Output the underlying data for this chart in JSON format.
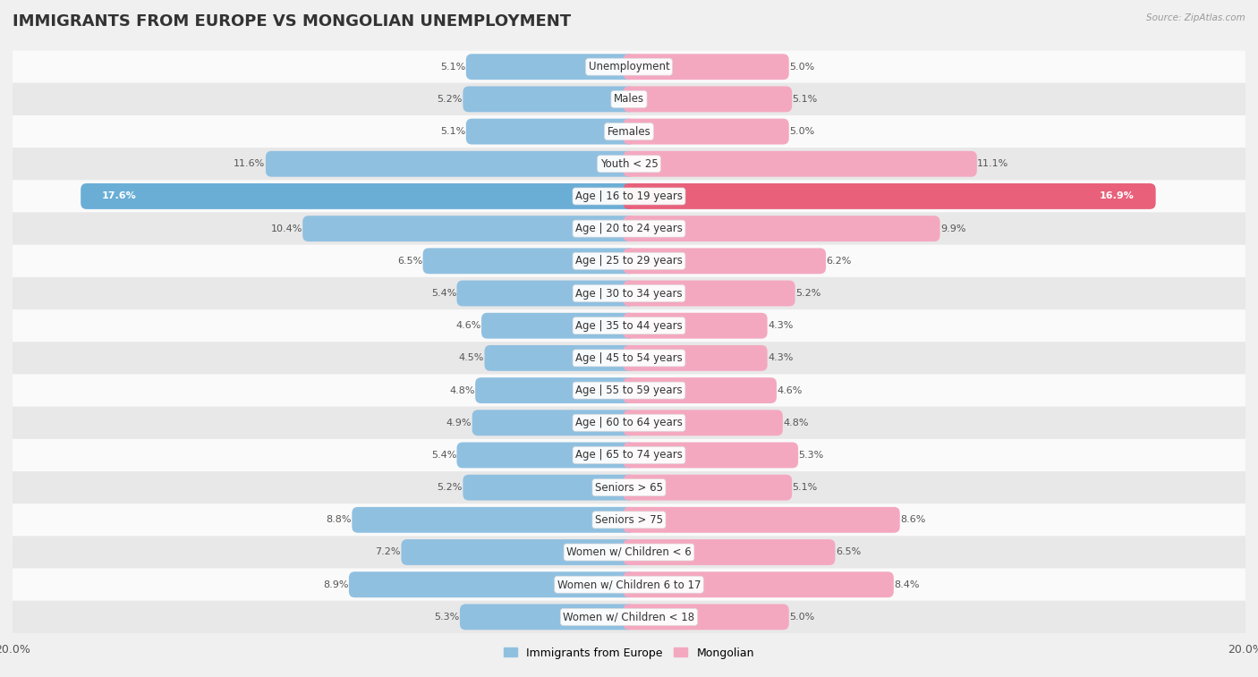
{
  "title": "IMMIGRANTS FROM EUROPE VS MONGOLIAN UNEMPLOYMENT",
  "source": "Source: ZipAtlas.com",
  "categories": [
    "Unemployment",
    "Males",
    "Females",
    "Youth < 25",
    "Age | 16 to 19 years",
    "Age | 20 to 24 years",
    "Age | 25 to 29 years",
    "Age | 30 to 34 years",
    "Age | 35 to 44 years",
    "Age | 45 to 54 years",
    "Age | 55 to 59 years",
    "Age | 60 to 64 years",
    "Age | 65 to 74 years",
    "Seniors > 65",
    "Seniors > 75",
    "Women w/ Children < 6",
    "Women w/ Children 6 to 17",
    "Women w/ Children < 18"
  ],
  "left_values": [
    5.1,
    5.2,
    5.1,
    11.6,
    17.6,
    10.4,
    6.5,
    5.4,
    4.6,
    4.5,
    4.8,
    4.9,
    5.4,
    5.2,
    8.8,
    7.2,
    8.9,
    5.3
  ],
  "right_values": [
    5.0,
    5.1,
    5.0,
    11.1,
    16.9,
    9.9,
    6.2,
    5.2,
    4.3,
    4.3,
    4.6,
    4.8,
    5.3,
    5.1,
    8.6,
    6.5,
    8.4,
    5.0
  ],
  "left_color": "#90c0e0",
  "right_color": "#f4a8c0",
  "left_color_dark": "#6aaed6",
  "right_color_dark": "#e8607a",
  "left_label": "Immigrants from Europe",
  "right_label": "Mongolian",
  "xlim": 20.0,
  "highlight_row": 4,
  "bg_color": "#f0f0f0",
  "row_bg_light": "#fafafa",
  "row_bg_dark": "#e8e8e8",
  "title_fontsize": 13,
  "label_fontsize": 8.5,
  "value_fontsize": 8.0,
  "axis_label_fontsize": 9
}
